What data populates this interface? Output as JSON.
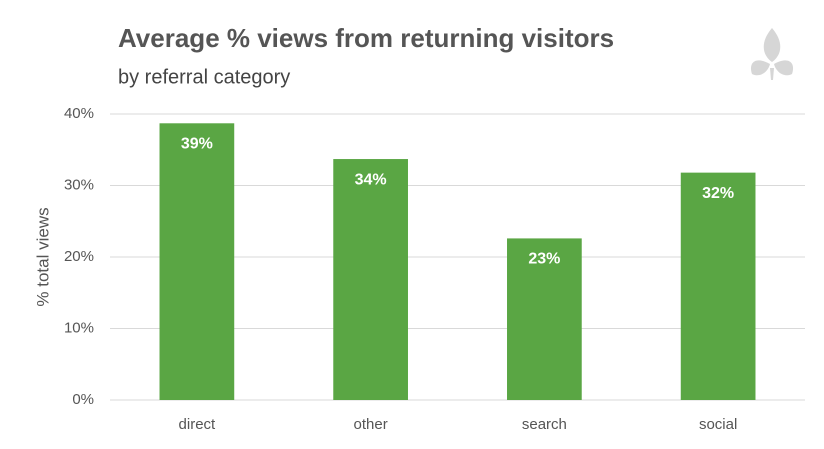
{
  "chart_data": {
    "type": "bar",
    "title": "Average % views from returning visitors",
    "subtitle": "by referral category",
    "y_label": "% total views",
    "categories": [
      "direct",
      "other",
      "search",
      "social"
    ],
    "values": [
      38.7,
      33.7,
      22.6,
      31.8
    ],
    "value_labels": [
      "39%",
      "34%",
      "23%",
      "32%"
    ],
    "color": "#5aa644",
    "ylim": [
      0,
      40
    ],
    "yticks": [
      {
        "value": 0,
        "label": "0%"
      },
      {
        "value": 10,
        "label": "10%"
      },
      {
        "value": 20,
        "label": "20%"
      },
      {
        "value": 30,
        "label": "30%"
      },
      {
        "value": 40,
        "label": "40%"
      }
    ],
    "grid": true
  }
}
